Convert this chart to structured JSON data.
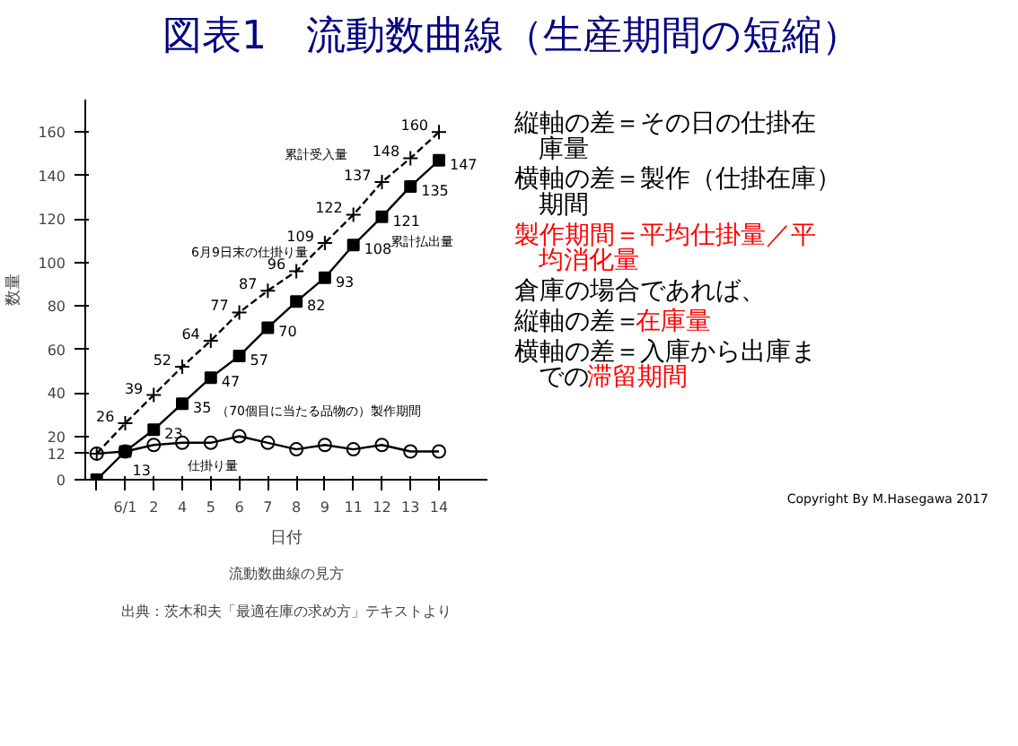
{
  "chart_data": [
    {
      "type": "line",
      "title": "図表1　流動数曲線（生産期間の短縮）",
      "xlabel": "日付",
      "ylabel": "数量",
      "categories": [
        null,
        "6/1",
        "2",
        "4",
        "5",
        "6",
        "7",
        "8",
        "9",
        "11",
        "12",
        "13",
        "14"
      ],
      "series": [
        {
          "name": "累計受入量",
          "color": "#000000",
          "line_style": "dashed",
          "marker": "cross",
          "values": [
            12,
            26,
            39,
            52,
            64,
            77,
            87,
            96,
            109,
            122,
            137,
            148,
            160
          ],
          "value_labels": [
            null,
            "26",
            "39",
            "52",
            "64",
            "77",
            "87",
            "96",
            "109",
            "122",
            "137",
            "148",
            "160"
          ]
        },
        {
          "name": "累計払出量",
          "color": "#000000",
          "line_style": "solid",
          "marker": "square",
          "values": [
            0,
            13,
            23,
            35,
            47,
            57,
            70,
            82,
            93,
            108,
            121,
            135,
            147
          ],
          "value_labels": [
            null,
            "13",
            "23",
            "35",
            "47",
            "57",
            "70",
            "82",
            "93",
            "108",
            "121",
            "135",
            "147"
          ]
        },
        {
          "name": "仕掛り量",
          "color": "#000000",
          "line_style": "solid",
          "marker": "circle",
          "values": [
            12,
            13,
            16,
            17,
            17,
            20,
            17,
            14,
            16,
            14,
            16,
            13,
            13
          ]
        }
      ],
      "ylim": [
        0,
        175
      ],
      "yticks": [
        0,
        12,
        20,
        40,
        60,
        80,
        100,
        120,
        140,
        160
      ],
      "grid": false,
      "legend": false,
      "annotations": [
        "6月9日末の仕掛り量",
        "（70個目に当たる品物の）製作期間",
        "流動数曲線の見方",
        "出典：茨木和夫「最適在庫の求め方」テキストより"
      ]
    },
    {
      "type": "other",
      "annotations": [
        "縦軸の差＝その日の仕掛在庫量",
        "横軸の差＝製作（仕掛在庫）期間",
        "製作期間＝平均仕掛量／平均消化量",
        "倉庫の場合であれば、",
        "縦軸の差＝",
        "在庫量",
        "横軸の差＝入庫から出庫ま",
        "での",
        "滞留期間",
        "Copyright By M.Hasegawa 2017"
      ],
      "colors": [
        "#000000",
        "#000000",
        "#ff0000",
        "#000000",
        "#000000",
        "#ff0000",
        "#000000",
        "#000000",
        "#ff0000",
        "#000000"
      ]
    }
  ]
}
